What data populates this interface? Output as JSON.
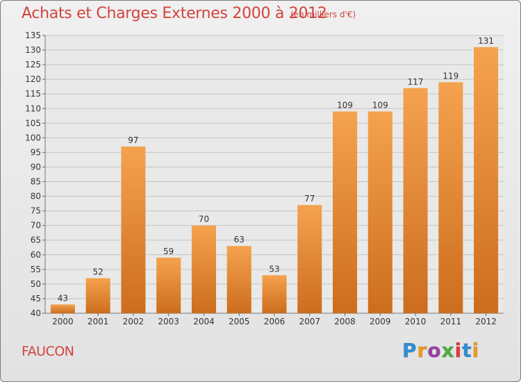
{
  "title": "Achats et Charges Externes 2000 à 2012",
  "subtitle": "(en milliers d'€)",
  "place": "FAUCON",
  "logo": {
    "text": "Proxiti",
    "colors": [
      "#2e8fd6",
      "#f29a1f",
      "#9b3fa8",
      "#4caf3f",
      "#e23a3a",
      "#2e8fd6",
      "#f29a1f"
    ]
  },
  "chart_data": {
    "type": "bar",
    "categories": [
      "2000",
      "2001",
      "2002",
      "2003",
      "2004",
      "2005",
      "2006",
      "2007",
      "2008",
      "2009",
      "2010",
      "2011",
      "2012"
    ],
    "values": [
      43,
      52,
      97,
      59,
      70,
      63,
      53,
      77,
      109,
      109,
      117,
      119,
      131
    ],
    "data_labels": [
      "43",
      "52",
      "97",
      "59",
      "70",
      "63",
      "53",
      "77",
      "109",
      "109",
      "117",
      "119",
      "131"
    ],
    "ylim": [
      40,
      135
    ],
    "yticks": [
      40,
      45,
      50,
      55,
      60,
      65,
      70,
      75,
      80,
      85,
      90,
      95,
      100,
      105,
      110,
      115,
      120,
      125,
      130,
      135
    ],
    "grid": true,
    "bar_color_top": "#f5a24e",
    "bar_color_bottom": "#cc6d1d"
  }
}
